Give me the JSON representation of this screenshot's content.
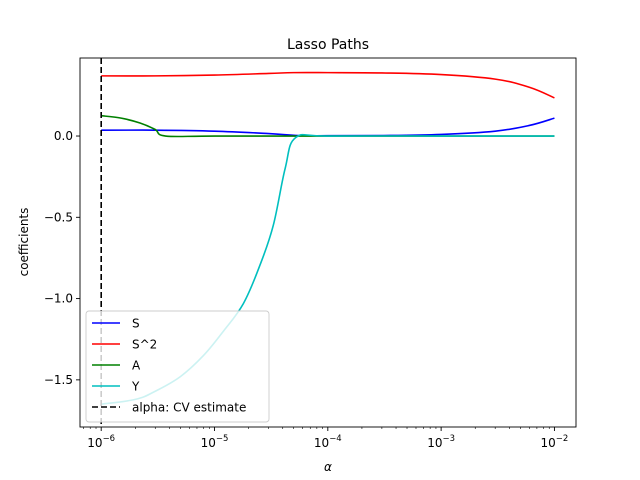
{
  "chart_data": {
    "type": "line",
    "title": "Lasso Paths",
    "xlabel": "α",
    "ylabel": "coefficients",
    "xscale": "log",
    "xlim": [
      6.5e-07,
      0.0155
    ],
    "ylim": [
      -1.79,
      0.48
    ],
    "grid": false,
    "legend_position": "lower-left",
    "x_ticks": [
      {
        "value": 1e-06,
        "base": "10",
        "exp": "−6"
      },
      {
        "value": 1e-05,
        "base": "10",
        "exp": "−5"
      },
      {
        "value": 0.0001,
        "base": "10",
        "exp": "−4"
      },
      {
        "value": 0.001,
        "base": "10",
        "exp": "−3"
      },
      {
        "value": 0.01,
        "base": "10",
        "exp": "−2"
      }
    ],
    "y_ticks": [
      {
        "value": 0.0,
        "label": "0.0"
      },
      {
        "value": -0.5,
        "label": "−0.5"
      },
      {
        "value": -1.0,
        "label": "−1.0"
      },
      {
        "value": -1.5,
        "label": "−1.5"
      }
    ],
    "series": [
      {
        "name": "S",
        "color": "#0000ff",
        "points": [
          [
            1e-06,
            0.036
          ],
          [
            3e-06,
            0.036
          ],
          [
            1e-05,
            0.03
          ],
          [
            3e-05,
            0.015
          ],
          [
            5.5e-05,
            0.003
          ],
          [
            0.0001,
            0.002
          ],
          [
            0.0003,
            0.003
          ],
          [
            0.001,
            0.01
          ],
          [
            0.003,
            0.03
          ],
          [
            0.006,
            0.065
          ],
          [
            0.01,
            0.11
          ]
        ]
      },
      {
        "name": "S^2",
        "color": "#ff0000",
        "points": [
          [
            1e-06,
            0.37
          ],
          [
            3e-06,
            0.37
          ],
          [
            1e-05,
            0.375
          ],
          [
            3e-05,
            0.385
          ],
          [
            5e-05,
            0.39
          ],
          [
            0.0001,
            0.39
          ],
          [
            0.0003,
            0.388
          ],
          [
            0.001,
            0.378
          ],
          [
            0.003,
            0.35
          ],
          [
            0.006,
            0.3
          ],
          [
            0.01,
            0.235
          ]
        ]
      },
      {
        "name": "A",
        "color": "#008000",
        "points": [
          [
            1e-06,
            0.125
          ],
          [
            1.5e-06,
            0.11
          ],
          [
            2.2e-06,
            0.08
          ],
          [
            3e-06,
            0.04
          ],
          [
            3.7e-06,
            0.0
          ],
          [
            1e-05,
            0.0
          ],
          [
            0.0001,
            0.0
          ],
          [
            0.001,
            0.0
          ],
          [
            0.01,
            0.0
          ]
        ]
      },
      {
        "name": "Y",
        "color": "#00bfbf",
        "points": [
          [
            1e-06,
            -1.65
          ],
          [
            2e-06,
            -1.62
          ],
          [
            3e-06,
            -1.57
          ],
          [
            5e-06,
            -1.48
          ],
          [
            8e-06,
            -1.35
          ],
          [
            1.2e-05,
            -1.2
          ],
          [
            1.8e-05,
            -1.03
          ],
          [
            2.5e-05,
            -0.8
          ],
          [
            3.3e-05,
            -0.55
          ],
          [
            4.2e-05,
            -0.2
          ],
          [
            5.2e-05,
            -0.01
          ],
          [
            0.0001,
            0.0
          ],
          [
            0.001,
            0.0
          ],
          [
            0.01,
            0.0
          ]
        ]
      }
    ],
    "vline": {
      "name": "alpha: CV estimate",
      "x": 1e-06,
      "color": "#000000",
      "style": "dashed"
    }
  }
}
